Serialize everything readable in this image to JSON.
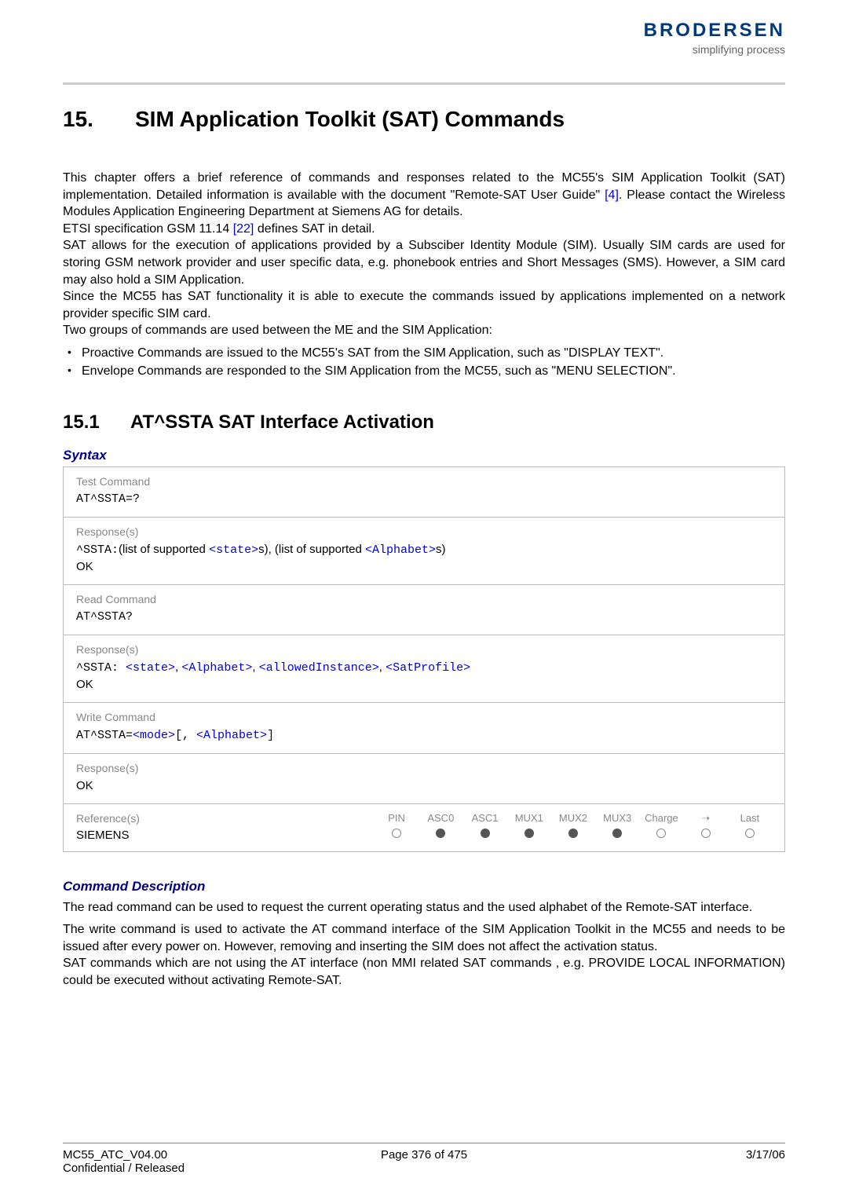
{
  "header": {
    "logo_text": "BRODERSEN",
    "logo_sub": "simplifying process",
    "logo_color": "#003a7a",
    "sub_color": "#666666"
  },
  "h1": {
    "num": "15.",
    "title": "SIM Application Toolkit (SAT) Commands"
  },
  "intro": {
    "p1a": "This chapter offers a brief reference of commands and responses related to the MC55's SIM Application Toolkit (SAT) implementation. Detailed information is available with the document \"Remote-SAT User Guide\" ",
    "p1_link": "[4]",
    "p1b": ". Please contact the Wireless Modules Application Engineering Department at Siemens AG for details.",
    "p2a": "ETSI specification GSM 11.14 ",
    "p2_link": "[22]",
    "p2b": " defines SAT in detail.",
    "p3": "SAT allows for the execution of applications provided by a Subsciber Identity Module (SIM). Usually SIM cards are used for storing GSM network provider and user specific data, e.g. phonebook entries and Short Messages (SMS). However, a SIM card may also hold a SIM Application.",
    "p4": "Since the MC55 has SAT functionality it is able to execute the commands issued by applications implemented on a network provider specific SIM card.",
    "p5": "Two groups of commands are used between the ME and the SIM Application:",
    "bullet1": "Proactive Commands are issued to the MC55's SAT from the SIM Application, such as \"DISPLAY TEXT\".",
    "bullet2": "Envelope Commands are responded to the SIM Application from the MC55, such as \"MENU SELECTION\"."
  },
  "h2": {
    "num": "15.1",
    "title": "AT^SSTA   SAT Interface Activation"
  },
  "syntax_label": "Syntax",
  "syntax": {
    "test_label": "Test Command",
    "test_cmd": "AT^SSTA=?",
    "test_resp_label": "Response(s)",
    "test_resp_prefix": "^SSTA:",
    "test_resp_text1": "(list of supported ",
    "test_resp_param1": "<state>",
    "test_resp_text2": "s), (list of supported ",
    "test_resp_param2": "<Alphabet>",
    "test_resp_text3": "s)",
    "test_resp_ok": "OK",
    "read_label": "Read Command",
    "read_cmd": "AT^SSTA?",
    "read_resp_label": "Response(s)",
    "read_resp_prefix": "^SSTA: ",
    "read_resp_p1": "<state>",
    "read_resp_c1": ", ",
    "read_resp_p2": "<Alphabet>",
    "read_resp_c2": ", ",
    "read_resp_p3": "<allowedInstance>",
    "read_resp_c3": ", ",
    "read_resp_p4": "<SatProfile>",
    "read_resp_ok": "OK",
    "write_label": "Write Command",
    "write_cmd_prefix": "AT^SSTA=",
    "write_cmd_p1": "<mode>",
    "write_cmd_mid": "[, ",
    "write_cmd_p2": "<Alphabet>",
    "write_cmd_end": "]",
    "write_resp_label": "Response(s)",
    "write_resp_ok": "OK",
    "ref_label": "Reference(s)",
    "ref_cols": [
      "PIN",
      "ASC0",
      "ASC1",
      "MUX1",
      "MUX2",
      "MUX3",
      "Charge",
      "➝",
      "Last"
    ],
    "ref_vendor": "SIEMENS",
    "ref_vals": [
      "empty",
      "full",
      "full",
      "full",
      "full",
      "full",
      "empty",
      "empty",
      "empty"
    ]
  },
  "cmd_desc_label": "Command Description",
  "cmd_desc": {
    "p1": "The read command can be used to request the current operating status and the used alphabet of the Remote-SAT interface.",
    "p2": "The write command is used to activate the AT command interface of the SIM Application Toolkit in the MC55 and needs to be issued after every power on. However, removing and inserting the SIM does not affect the activation status.",
    "p3": "SAT commands which are not using the AT interface (non MMI related SAT commands , e.g. PROVIDE LOCAL INFORMATION) could be executed without activating Remote-SAT."
  },
  "footer": {
    "left1": "MC55_ATC_V04.00",
    "left2": "Confidential / Released",
    "center": "Page 376 of 475",
    "right": "3/17/06"
  },
  "colors": {
    "border": "#bbbbbb",
    "label": "#888888",
    "link": "#0000dd",
    "heading_blue": "#000088"
  }
}
